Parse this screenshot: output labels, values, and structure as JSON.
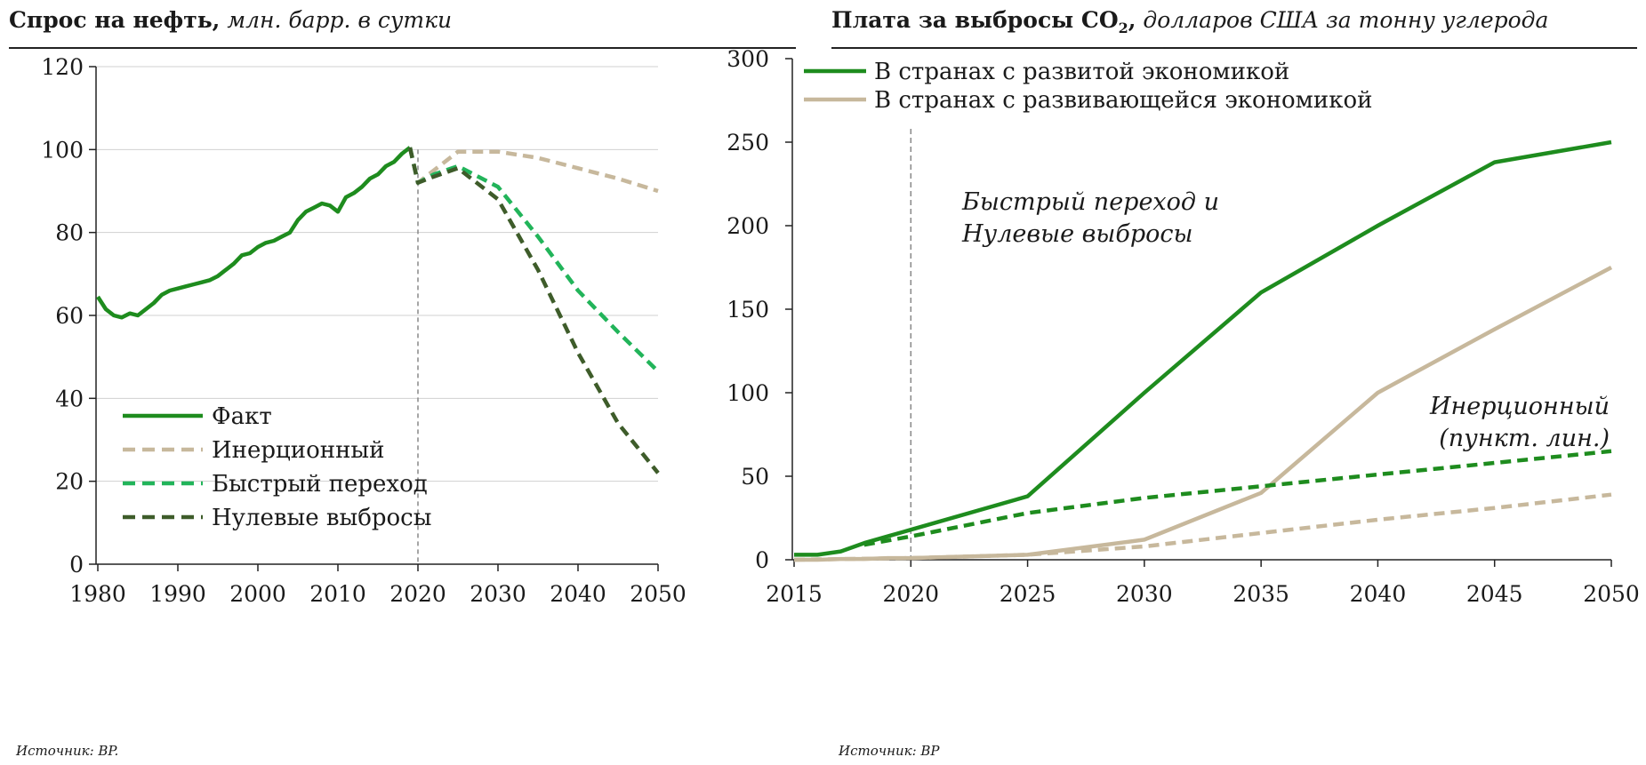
{
  "colors": {
    "fact": "#1e8c1e",
    "inertial": "#c7b89c",
    "fast": "#22b45a",
    "netzero": "#3e5c2a",
    "developed": "#1e8c1e",
    "developing": "#c7b89c",
    "grid": "#d0d0d0"
  },
  "left_panel": {
    "title_bold": "Спрос на нефть,",
    "title_italic": " млн. барр. в сутки",
    "source": "Источник: BP."
  },
  "right_panel": {
    "title_bold": "Плата за выбросы CO",
    "title_sub": "2",
    "title_bold_end": ",",
    "title_italic": " долларов США за тонну углерода",
    "source": "Источник:  BP"
  },
  "chart_data": [
    {
      "type": "line",
      "xlim": [
        1980,
        2050
      ],
      "ylim": [
        0,
        120
      ],
      "x_ticks": [
        "1980",
        "1990",
        "2000",
        "2010",
        "2020",
        "2030",
        "2040",
        "2050"
      ],
      "y_ticks": [
        "0",
        "20",
        "40",
        "60",
        "80",
        "100",
        "120"
      ],
      "grid": true,
      "legend_position": "bottom-left",
      "vline_x": 2020,
      "series": [
        {
          "name": "Факт",
          "style": "solid",
          "x": [
            1980,
            1981,
            1982,
            1983,
            1984,
            1985,
            1986,
            1987,
            1988,
            1989,
            1990,
            1991,
            1992,
            1993,
            1994,
            1995,
            1996,
            1997,
            1998,
            1999,
            2000,
            2001,
            2002,
            2003,
            2004,
            2005,
            2006,
            2007,
            2008,
            2009,
            2010,
            2011,
            2012,
            2013,
            2014,
            2015,
            2016,
            2017,
            2018,
            2019
          ],
          "y": [
            64.5,
            61.5,
            60,
            59.5,
            60.5,
            60,
            61.5,
            63,
            65,
            66,
            66.5,
            67,
            67.5,
            68,
            68.5,
            69.5,
            71,
            72.5,
            74.5,
            75,
            76.5,
            77.5,
            78,
            79,
            80,
            83,
            85,
            86,
            87,
            86.5,
            85,
            88.5,
            89.5,
            91,
            93,
            94,
            96,
            97,
            99,
            100.5
          ]
        },
        {
          "name": "Инерционный",
          "style": "dashed",
          "x": [
            2019,
            2020,
            2022,
            2025,
            2027,
            2030,
            2035,
            2040,
            2045,
            2050
          ],
          "y": [
            100.5,
            92,
            95,
            99.5,
            99.5,
            99.5,
            98,
            95.5,
            93,
            90
          ]
        },
        {
          "name": "Быстрый переход",
          "style": "dashed",
          "x": [
            2019,
            2020,
            2022,
            2025,
            2030,
            2035,
            2040,
            2045,
            2050
          ],
          "y": [
            100.5,
            92,
            94,
            96,
            91,
            79,
            66,
            56,
            46.5
          ]
        },
        {
          "name": "Нулевые выбросы",
          "style": "dashed",
          "x": [
            2019,
            2020,
            2022,
            2025,
            2030,
            2035,
            2040,
            2045,
            2050
          ],
          "y": [
            100.5,
            92,
            93.5,
            95.5,
            88,
            71,
            51,
            34,
            22
          ]
        }
      ]
    },
    {
      "type": "line",
      "xlim": [
        2015,
        2050
      ],
      "ylim": [
        0,
        300
      ],
      "x_ticks": [
        "2015",
        "2020",
        "2025",
        "2030",
        "2035",
        "2040",
        "2045",
        "2050"
      ],
      "y_ticks": [
        "0",
        "50",
        "100",
        "150",
        "200",
        "250",
        "300"
      ],
      "grid": false,
      "legend_position": "top-left",
      "vline_x": 2020,
      "legend": [
        "В странах с развитой экономикой",
        "В странах с развивающейся экономикой"
      ],
      "annotations": [
        [
          "Быстрый переход и",
          "Нулевые выбросы"
        ],
        [
          "Инерционный",
          "(пункт. лин.)"
        ]
      ],
      "series": [
        {
          "group": "developed",
          "style": "solid",
          "x": [
            2015,
            2016,
            2017,
            2018,
            2019,
            2020,
            2025,
            2030,
            2035,
            2040,
            2045,
            2050
          ],
          "y": [
            3,
            3,
            5,
            10,
            14,
            18,
            38,
            100,
            160,
            200,
            238,
            250
          ]
        },
        {
          "group": "developing",
          "style": "solid",
          "x": [
            2015,
            2016,
            2017,
            2018,
            2019,
            2020,
            2025,
            2030,
            2035,
            2040,
            2045,
            2050
          ],
          "y": [
            0,
            0,
            0.5,
            0.5,
            1,
            1,
            3,
            12,
            40,
            100,
            138,
            175
          ]
        },
        {
          "group": "developed",
          "style": "dashed",
          "x": [
            2018,
            2020,
            2025,
            2030,
            2035,
            2040,
            2045,
            2050
          ],
          "y": [
            9,
            14,
            28,
            37,
            44,
            51,
            58,
            65
          ]
        },
        {
          "group": "developing",
          "style": "dashed",
          "x": [
            2015,
            2020,
            2025,
            2030,
            2035,
            2040,
            2045,
            2050
          ],
          "y": [
            0,
            1,
            3,
            8,
            16,
            24,
            31,
            39
          ]
        }
      ]
    }
  ]
}
